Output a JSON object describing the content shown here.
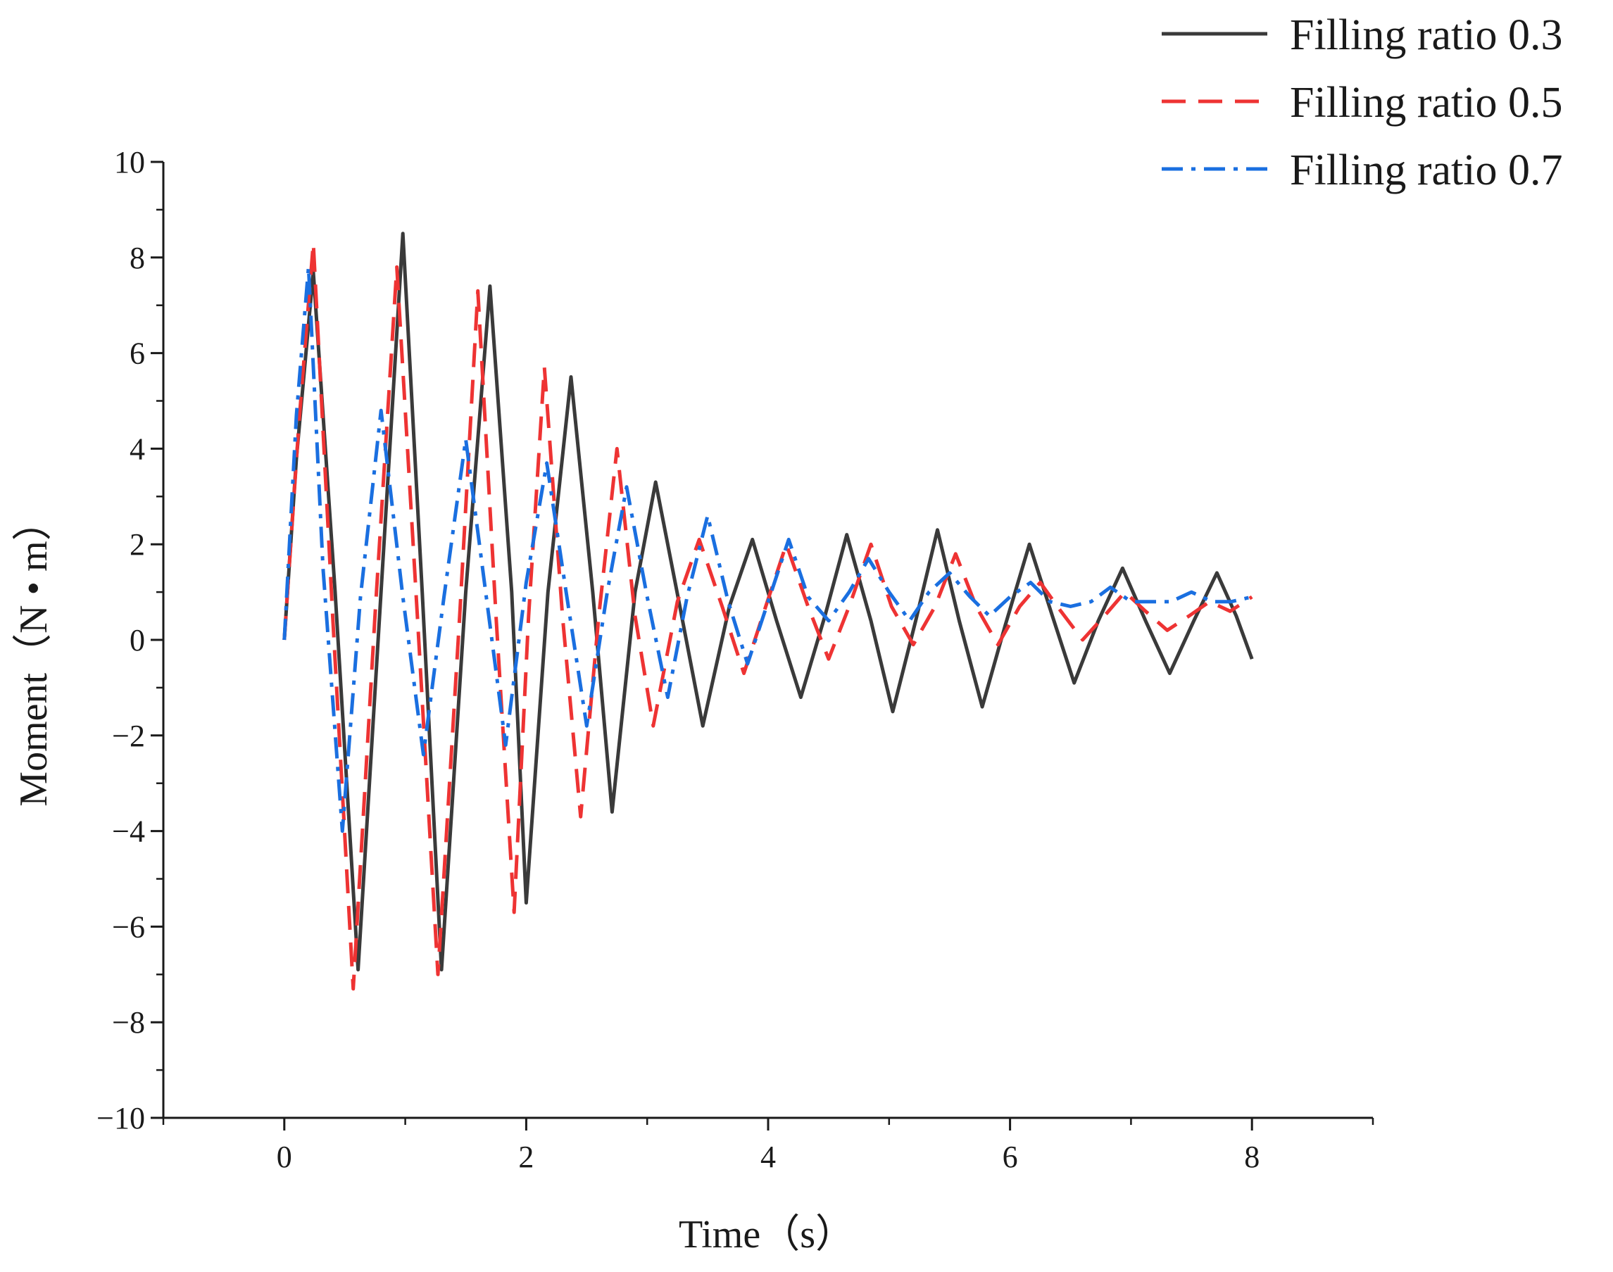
{
  "chart_data": {
    "type": "line",
    "xlabel": "Time（s）",
    "ylabel": "Moment（N • m）",
    "xlim": [
      -1,
      9
    ],
    "ylim": [
      -10,
      10
    ],
    "x_ticks": [
      0,
      2,
      4,
      6,
      8
    ],
    "y_ticks": [
      -10,
      -8,
      -6,
      -4,
      -2,
      0,
      2,
      4,
      6,
      8,
      10
    ],
    "x_tick_labels": [
      "0",
      "2",
      "4",
      "6",
      "8"
    ],
    "y_tick_labels": [
      "−10",
      "−8",
      "−6",
      "−4",
      "−2",
      "0",
      "2",
      "4",
      "6",
      "8",
      "10"
    ],
    "grid": false,
    "legend_position": "top-right",
    "series": [
      {
        "name": "Filling ratio 0.3",
        "color": "#3a3a3a",
        "style": "solid",
        "x": [
          0,
          0.1,
          0.24,
          0.42,
          0.61,
          0.8,
          0.98,
          1.14,
          1.3,
          1.5,
          1.7,
          1.88,
          2.0,
          2.18,
          2.37,
          2.55,
          2.71,
          2.9,
          3.07,
          3.27,
          3.46,
          3.68,
          3.87,
          4.07,
          4.27,
          4.47,
          4.65,
          4.85,
          5.03,
          5.22,
          5.4,
          5.58,
          5.77,
          5.96,
          6.16,
          6.35,
          6.53,
          6.73,
          6.93,
          7.12,
          7.32,
          7.52,
          7.71,
          7.87,
          8.0
        ],
        "y": [
          0,
          3.8,
          7.7,
          1.0,
          -6.9,
          1.0,
          8.5,
          1.0,
          -6.9,
          1.0,
          7.4,
          1.0,
          -5.5,
          1.0,
          5.5,
          1.0,
          -3.6,
          1.0,
          3.3,
          0.7,
          -1.8,
          0.7,
          2.1,
          0.4,
          -1.2,
          0.5,
          2.2,
          0.4,
          -1.5,
          0.4,
          2.3,
          0.4,
          -1.4,
          0.3,
          2.0,
          0.5,
          -0.9,
          0.4,
          1.5,
          0.4,
          -0.7,
          0.4,
          1.4,
          0.5,
          -0.4
        ]
      },
      {
        "name": "Filling ratio 0.5",
        "color": "#ee3333",
        "style": "dashed",
        "x": [
          0,
          0.12,
          0.24,
          0.4,
          0.57,
          0.75,
          0.93,
          1.1,
          1.27,
          1.45,
          1.6,
          1.75,
          1.9,
          2.02,
          2.15,
          2.3,
          2.45,
          2.6,
          2.75,
          2.9,
          3.05,
          3.25,
          3.43,
          3.62,
          3.8,
          3.98,
          4.15,
          4.33,
          4.5,
          4.67,
          4.85,
          5.02,
          5.2,
          5.38,
          5.55,
          5.72,
          5.9,
          6.08,
          6.25,
          6.42,
          6.6,
          6.78,
          6.95,
          7.12,
          7.3,
          7.48,
          7.65,
          7.82,
          8.0
        ],
        "y": [
          0,
          4.5,
          8.3,
          0.5,
          -7.3,
          0.5,
          7.8,
          0.5,
          -7.0,
          0.5,
          7.3,
          0.5,
          -5.7,
          0.5,
          5.7,
          0.5,
          -3.7,
          0.5,
          4.0,
          0.5,
          -1.8,
          0.8,
          2.1,
          0.7,
          -0.7,
          0.7,
          2.0,
          0.7,
          -0.4,
          0.7,
          2.0,
          0.7,
          -0.1,
          0.7,
          1.8,
          0.7,
          -0.1,
          0.7,
          1.2,
          0.6,
          0.0,
          0.5,
          1.0,
          0.6,
          0.2,
          0.5,
          0.8,
          0.6,
          0.9
        ]
      },
      {
        "name": "Filling ratio 0.7",
        "color": "#1a6fe0",
        "style": "dashdot",
        "x": [
          0,
          0.1,
          0.2,
          0.32,
          0.48,
          0.63,
          0.8,
          0.98,
          1.15,
          1.32,
          1.5,
          1.67,
          1.83,
          2.0,
          2.17,
          2.33,
          2.5,
          2.67,
          2.83,
          3.0,
          3.17,
          3.33,
          3.5,
          3.67,
          3.83,
          4.0,
          4.17,
          4.33,
          4.5,
          4.67,
          4.83,
          5.0,
          5.17,
          5.33,
          5.5,
          5.67,
          5.83,
          6.0,
          6.17,
          6.33,
          6.5,
          6.67,
          6.83,
          7.0,
          7.17,
          7.33,
          7.5,
          7.67,
          7.83,
          8.0
        ],
        "y": [
          0,
          4.7,
          7.8,
          1.5,
          -4.0,
          0.9,
          4.8,
          0.9,
          -2.4,
          0.9,
          4.2,
          0.9,
          -2.2,
          1.2,
          3.7,
          1.0,
          -1.8,
          1.0,
          3.2,
          0.9,
          -1.2,
          0.9,
          2.6,
          0.8,
          -0.5,
          0.8,
          2.1,
          0.9,
          0.4,
          1.0,
          1.7,
          1.0,
          0.4,
          1.0,
          1.4,
          0.9,
          0.5,
          0.9,
          1.2,
          0.8,
          0.7,
          0.8,
          1.1,
          0.8,
          0.8,
          0.8,
          1.0,
          0.8,
          0.8,
          0.9
        ]
      }
    ]
  }
}
